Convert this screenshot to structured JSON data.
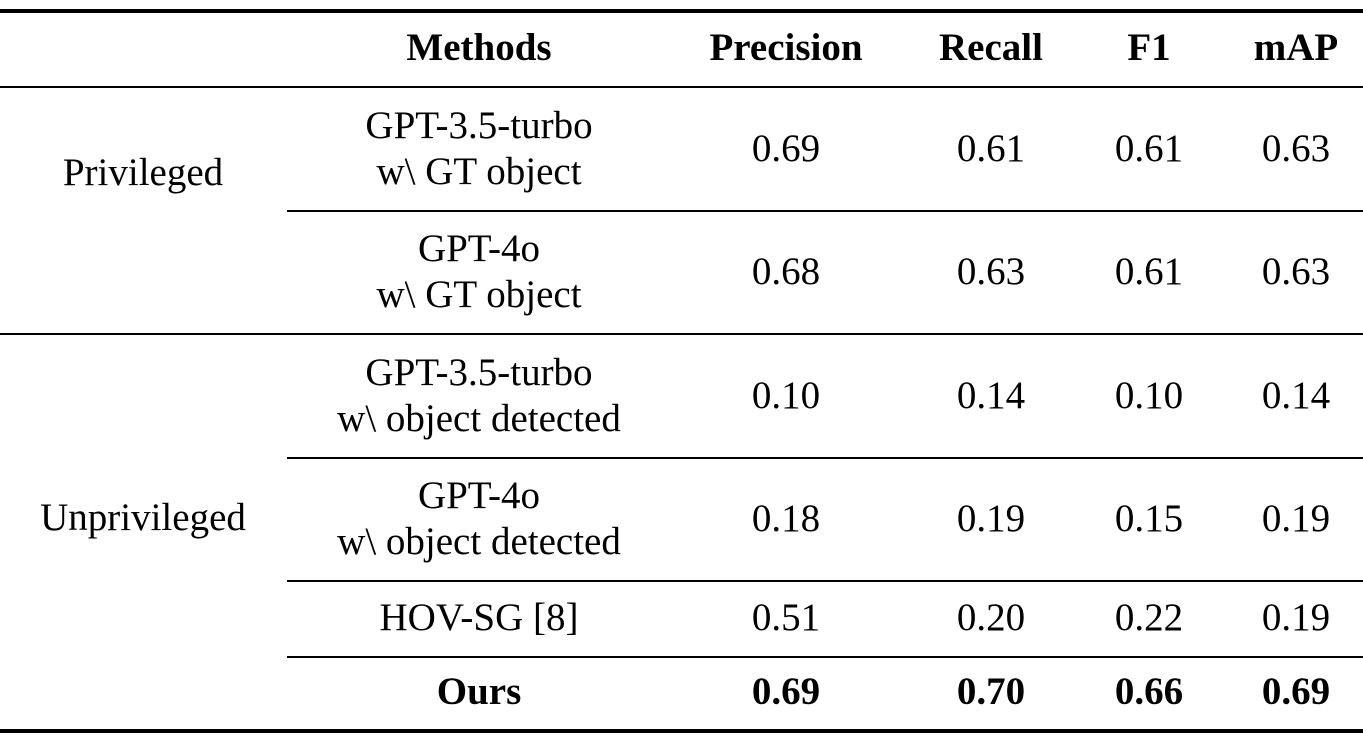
{
  "table": {
    "headers": [
      "",
      "Methods",
      "Precision",
      "Recall",
      "F1",
      "mAP"
    ],
    "groups": [
      {
        "label": "Privileged",
        "rows": [
          {
            "method_line1": "GPT-3.5-turbo",
            "method_line2": "w\\ GT object",
            "precision": "0.69",
            "recall": "0.61",
            "f1": "0.61",
            "map": "0.63"
          },
          {
            "method_line1": "GPT-4o",
            "method_line2": "w\\ GT object",
            "precision": "0.68",
            "recall": "0.63",
            "f1": "0.61",
            "map": "0.63"
          }
        ]
      },
      {
        "label": "Unprivileged",
        "rows": [
          {
            "method_line1": "GPT-3.5-turbo",
            "method_line2": "w\\ object detected",
            "precision": "0.10",
            "recall": "0.14",
            "f1": "0.10",
            "map": "0.14"
          },
          {
            "method_line1": "GPT-4o",
            "method_line2": "w\\ object detected",
            "precision": "0.18",
            "recall": "0.19",
            "f1": "0.15",
            "map": "0.19"
          },
          {
            "method_line1": "HOV-SG [8]",
            "method_line2": "",
            "precision": "0.51",
            "recall": "0.20",
            "f1": "0.22",
            "map": "0.19"
          },
          {
            "method_line1": "Ours",
            "method_line2": "",
            "precision": "0.69",
            "recall": "0.70",
            "f1": "0.66",
            "map": "0.69",
            "bold": true
          }
        ]
      }
    ]
  }
}
